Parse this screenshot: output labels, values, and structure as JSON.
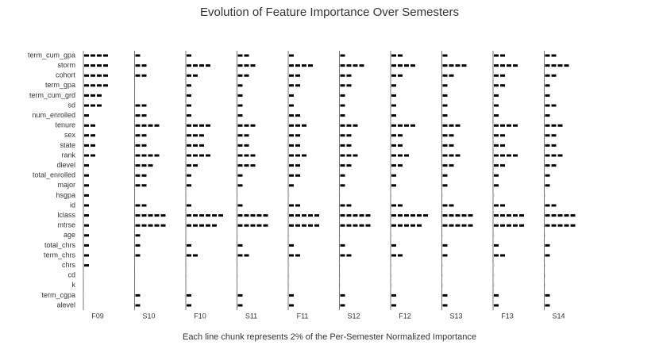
{
  "chart_data": {
    "type": "chunk_bar",
    "title": "Evolution of Feature Importance Over Semesters",
    "x_label": "Each line chunk represents 2% of the Per-Semester Normalized Importance",
    "color": "#000000",
    "categories": [
      "term_cum_gpa",
      "storm",
      "cohort",
      "term_gpa",
      "term_cum_grd",
      "sd",
      "num_enrolled",
      "tenure",
      "sex",
      "state",
      "rank",
      "dlevel",
      "total_enrolled",
      "major",
      "hsgpa",
      "id",
      "lclass",
      "mtrse",
      "age",
      "total_chrs",
      "term_chrs",
      "chrs",
      "cd",
      "k",
      "term_cgpa",
      "alevel"
    ],
    "series": [
      {
        "name": "F09",
        "values": [
          8,
          8,
          8,
          8,
          6,
          6,
          2,
          4,
          4,
          4,
          4,
          2,
          2,
          2,
          2,
          2,
          2,
          2,
          2,
          2,
          2,
          2,
          0,
          0,
          0,
          0
        ]
      },
      {
        "name": "S10",
        "values": [
          2,
          4,
          4,
          0,
          0,
          4,
          4,
          8,
          4,
          4,
          8,
          6,
          4,
          4,
          0,
          4,
          10,
          10,
          2,
          2,
          2,
          0,
          0,
          0,
          2,
          2
        ]
      },
      {
        "name": "F10",
        "values": [
          2,
          8,
          4,
          2,
          2,
          2,
          2,
          8,
          6,
          6,
          8,
          4,
          2,
          2,
          0,
          2,
          12,
          10,
          0,
          2,
          4,
          0,
          0,
          0,
          2,
          2
        ]
      },
      {
        "name": "S11",
        "values": [
          4,
          6,
          4,
          2,
          2,
          2,
          2,
          6,
          4,
          4,
          6,
          6,
          2,
          2,
          0,
          2,
          10,
          10,
          0,
          2,
          4,
          0,
          0,
          0,
          2,
          2
        ]
      },
      {
        "name": "F11",
        "values": [
          2,
          8,
          4,
          4,
          2,
          2,
          4,
          6,
          4,
          4,
          6,
          4,
          4,
          2,
          0,
          4,
          10,
          10,
          0,
          2,
          4,
          0,
          0,
          0,
          2,
          2
        ]
      },
      {
        "name": "S12",
        "values": [
          2,
          8,
          4,
          4,
          2,
          2,
          2,
          6,
          4,
          4,
          6,
          4,
          2,
          2,
          0,
          4,
          10,
          10,
          0,
          2,
          4,
          0,
          0,
          0,
          2,
          2
        ]
      },
      {
        "name": "F12",
        "values": [
          4,
          8,
          4,
          2,
          2,
          2,
          2,
          8,
          4,
          4,
          6,
          4,
          2,
          2,
          0,
          4,
          12,
          10,
          0,
          2,
          4,
          0,
          0,
          0,
          2,
          2
        ]
      },
      {
        "name": "S13",
        "values": [
          2,
          8,
          4,
          2,
          2,
          2,
          2,
          6,
          4,
          4,
          6,
          4,
          2,
          2,
          0,
          4,
          10,
          10,
          0,
          2,
          2,
          0,
          0,
          0,
          2,
          2
        ]
      },
      {
        "name": "F13",
        "values": [
          4,
          8,
          4,
          4,
          2,
          2,
          2,
          8,
          4,
          4,
          8,
          4,
          2,
          2,
          0,
          4,
          10,
          10,
          0,
          2,
          4,
          0,
          0,
          0,
          2,
          2
        ]
      },
      {
        "name": "S14",
        "values": [
          4,
          8,
          4,
          2,
          2,
          4,
          2,
          6,
          4,
          4,
          6,
          4,
          2,
          2,
          0,
          4,
          10,
          10,
          0,
          2,
          2,
          0,
          0,
          0,
          2,
          2
        ]
      }
    ]
  }
}
